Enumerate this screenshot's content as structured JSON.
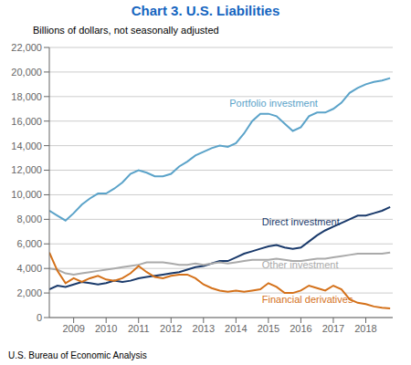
{
  "chart_data": {
    "type": "line",
    "title": "Chart 3. U.S. Liabilities",
    "subtitle": "Billions of dollars, not seasonally adjusted",
    "footer": "U.S. Bureau of Economic Analysis",
    "title_color": "#1565C0",
    "x": [
      2008.25,
      2008.5,
      2008.75,
      2009.0,
      2009.25,
      2009.5,
      2009.75,
      2010.0,
      2010.25,
      2010.5,
      2010.75,
      2011.0,
      2011.25,
      2011.5,
      2011.75,
      2012.0,
      2012.25,
      2012.5,
      2012.75,
      2013.0,
      2013.25,
      2013.5,
      2013.75,
      2014.0,
      2014.25,
      2014.5,
      2014.75,
      2015.0,
      2015.25,
      2015.5,
      2015.75,
      2016.0,
      2016.25,
      2016.5,
      2016.75,
      2017.0,
      2017.25,
      2017.5,
      2017.75,
      2018.0,
      2018.25,
      2018.5,
      2018.75
    ],
    "series": [
      {
        "name": "Portfolio investment",
        "color": "#5BA3C9",
        "values": [
          8700,
          8300,
          7900,
          8500,
          9200,
          9700,
          10100,
          10100,
          10500,
          11000,
          11700,
          12000,
          11800,
          11500,
          11500,
          11700,
          12300,
          12700,
          13200,
          13500,
          13800,
          14000,
          13900,
          14200,
          15000,
          16000,
          16600,
          16600,
          16400,
          15800,
          15200,
          15500,
          16400,
          16700,
          16700,
          17000,
          17500,
          18300,
          18700,
          19000,
          19200,
          19300,
          19500
        ]
      },
      {
        "name": "Direct investment",
        "color": "#1A3A6B",
        "values": [
          2300,
          2600,
          2500,
          2700,
          2900,
          2800,
          2700,
          2800,
          3000,
          2900,
          3000,
          3200,
          3300,
          3400,
          3500,
          3600,
          3700,
          3900,
          4100,
          4200,
          4400,
          4600,
          4600,
          4900,
          5200,
          5400,
          5600,
          5800,
          5900,
          5700,
          5600,
          5700,
          6200,
          6700,
          7100,
          7400,
          7700,
          8000,
          8300,
          8300,
          8500,
          8700,
          9000
        ]
      },
      {
        "name": "Other investment",
        "color": "#AAAAAA",
        "values": [
          4000,
          3900,
          3600,
          3500,
          3600,
          3700,
          3800,
          3900,
          4000,
          4100,
          4200,
          4300,
          4500,
          4500,
          4500,
          4400,
          4300,
          4300,
          4400,
          4300,
          4400,
          4500,
          4400,
          4500,
          4600,
          4700,
          4700,
          4700,
          4800,
          4700,
          4600,
          4600,
          4700,
          4800,
          4800,
          4900,
          5000,
          5100,
          5200,
          5200,
          5200,
          5200,
          5300
        ]
      },
      {
        "name": "Financial derivatives",
        "color": "#D4711A",
        "values": [
          5300,
          3800,
          2800,
          3200,
          2900,
          3200,
          3400,
          3100,
          3000,
          3200,
          3600,
          4200,
          3700,
          3300,
          3200,
          3400,
          3500,
          3500,
          3200,
          2700,
          2400,
          2200,
          2100,
          2200,
          2100,
          2200,
          2300,
          2800,
          2500,
          2000,
          2000,
          2200,
          2600,
          2400,
          2200,
          2600,
          2300,
          1500,
          1200,
          1100,
          900,
          800,
          750
        ]
      }
    ],
    "annotations": [
      {
        "text": "Portfolio investment",
        "x": 2013.8,
        "y": 17200,
        "color": "#5BA3C9"
      },
      {
        "text": "Direct investment",
        "x": 2014.8,
        "y": 7500,
        "color": "#1A3A6B"
      },
      {
        "text": "Other investment",
        "x": 2014.8,
        "y": 4000,
        "color": "#AAAAAA"
      },
      {
        "text": "Financial derivatives",
        "x": 2014.8,
        "y": 1200,
        "color": "#D4711A"
      }
    ],
    "xlim": [
      2008.25,
      2018.83
    ],
    "xticks": [
      2009,
      2010,
      2011,
      2012,
      2013,
      2014,
      2015,
      2016,
      2017,
      2018
    ],
    "ylim": [
      0,
      22000
    ],
    "yticks": [
      0,
      {
        "value": 2000,
        "label": "2,000"
      },
      {
        "value": 4000,
        "label": "4,000"
      },
      {
        "value": 6000,
        "label": "6,000"
      },
      {
        "value": 8000,
        "label": "8,000"
      },
      {
        "value": 10000,
        "label": "10,000"
      },
      {
        "value": 12000,
        "label": "12,000"
      },
      {
        "value": 14000,
        "label": "14,000"
      },
      {
        "value": 16000,
        "label": "16,000"
      },
      {
        "value": 18000,
        "label": "18,000"
      },
      {
        "value": 20000,
        "label": "20,000"
      },
      {
        "value": 22000,
        "label": "22,000"
      }
    ],
    "grid": true
  }
}
